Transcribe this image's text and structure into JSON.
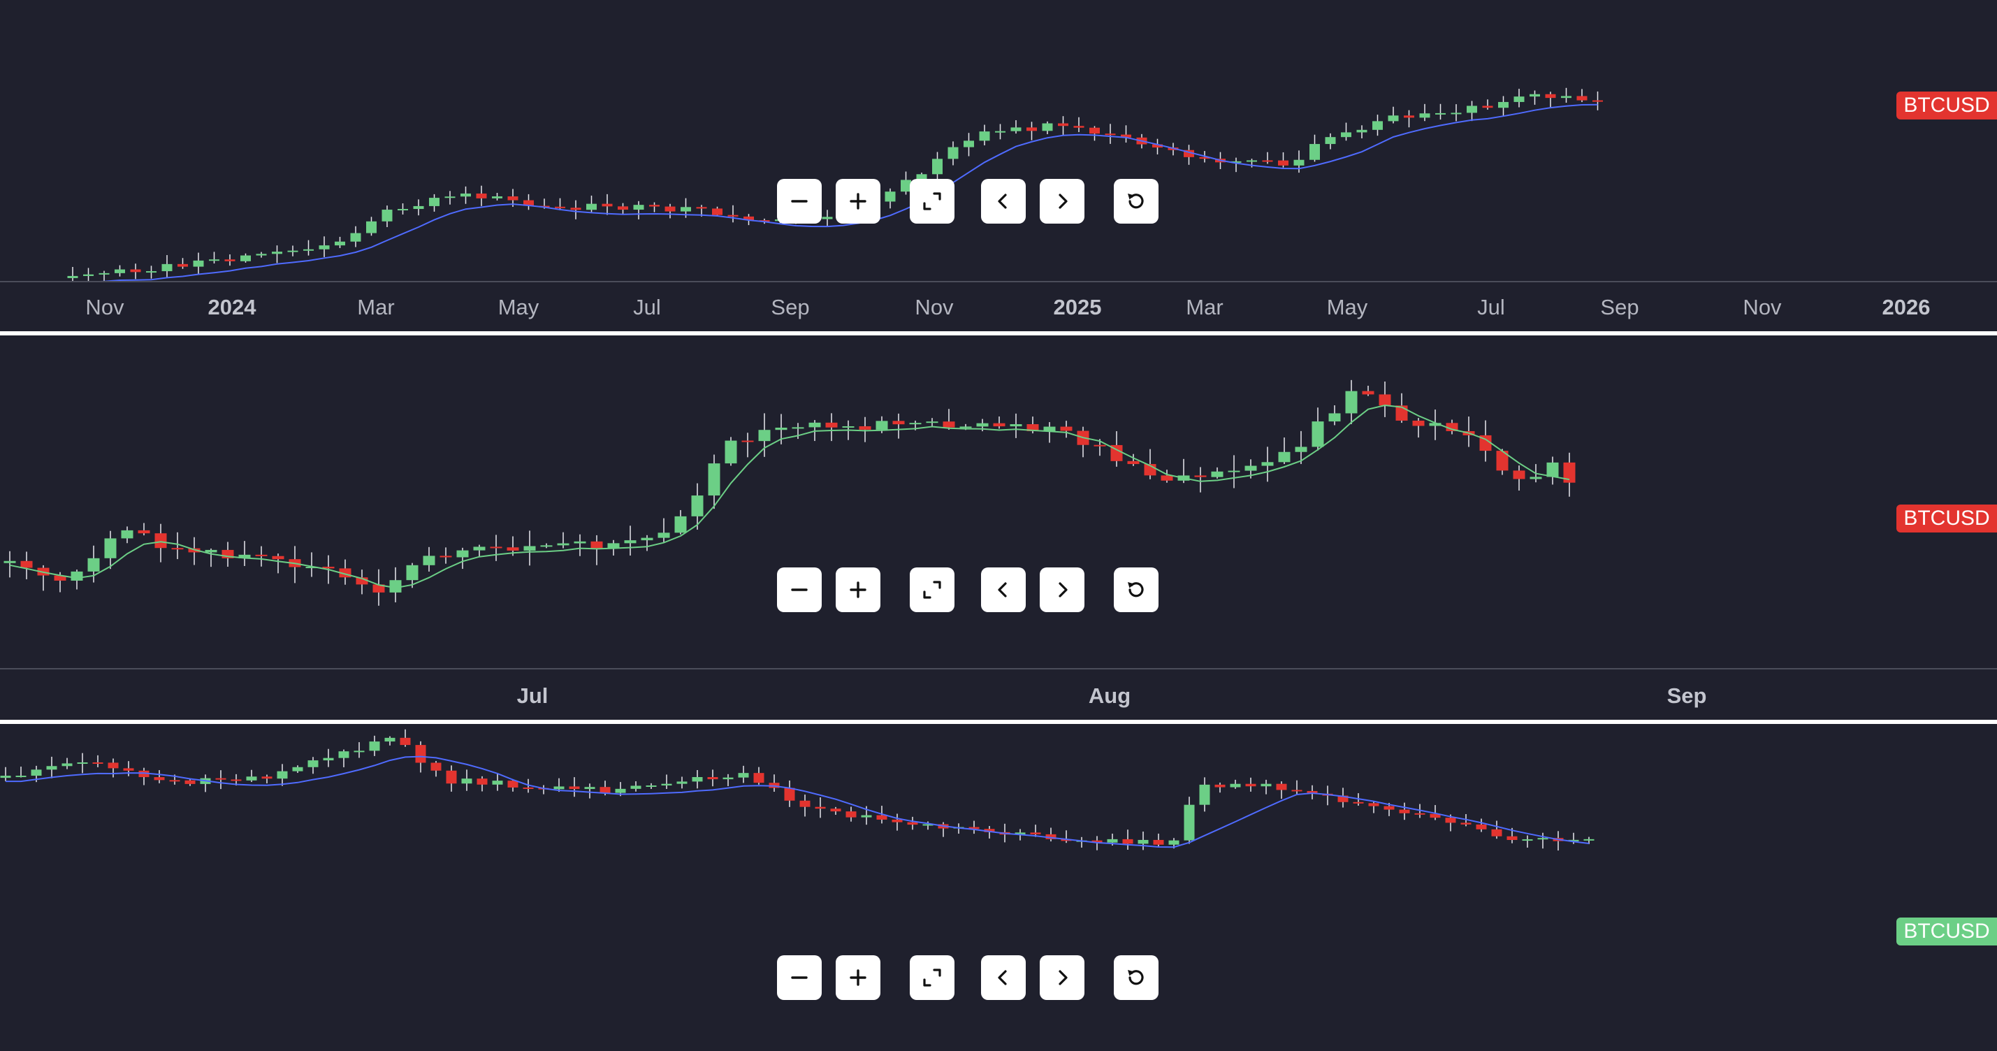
{
  "colors": {
    "background": "#1f202d",
    "up": "#6ccf86",
    "down": "#e3342f",
    "ma_blue": "#4f6bff",
    "ma_green": "#6ccf86",
    "axis_text": "#b4b6c0"
  },
  "panes": [
    {
      "id": "weekly",
      "price_label": "BTCUSD",
      "label_color": "#e3342f",
      "ma_color": "#4f6bff",
      "controls": [
        {
          "name": "zoom-out-button",
          "icon": "minus-icon"
        },
        {
          "name": "zoom-in-button",
          "icon": "plus-icon"
        },
        {
          "name": "fit-content-button",
          "icon": "fit-screen-icon"
        },
        {
          "name": "scroll-left-button",
          "icon": "chevron-left-icon"
        },
        {
          "name": "scroll-right-button",
          "icon": "chevron-right-icon"
        },
        {
          "name": "reset-button",
          "icon": "rotate-ccw-icon"
        }
      ],
      "time_axis": [
        {
          "label": "Nov",
          "bold": false
        },
        {
          "label": "2024",
          "bold": true
        },
        {
          "label": "Mar",
          "bold": false
        },
        {
          "label": "May",
          "bold": false
        },
        {
          "label": "Jul",
          "bold": false
        },
        {
          "label": "Sep",
          "bold": false
        },
        {
          "label": "Nov",
          "bold": false
        },
        {
          "label": "2025",
          "bold": true
        },
        {
          "label": "Mar",
          "bold": false
        },
        {
          "label": "May",
          "bold": false
        },
        {
          "label": "Jul",
          "bold": false
        },
        {
          "label": "Sep",
          "bold": false
        },
        {
          "label": "Nov",
          "bold": false
        },
        {
          "label": "2026",
          "bold": true
        }
      ]
    },
    {
      "id": "daily",
      "price_label": "BTCUSD",
      "label_color": "#e3342f",
      "ma_color": "#6ccf86",
      "controls": [
        {
          "name": "zoom-out-button",
          "icon": "minus-icon"
        },
        {
          "name": "zoom-in-button",
          "icon": "plus-icon"
        },
        {
          "name": "fit-content-button",
          "icon": "fit-screen-icon"
        },
        {
          "name": "scroll-left-button",
          "icon": "chevron-left-icon"
        },
        {
          "name": "scroll-right-button",
          "icon": "chevron-right-icon"
        },
        {
          "name": "reset-button",
          "icon": "rotate-ccw-icon"
        }
      ],
      "time_axis": [
        {
          "label": "Jul",
          "bold": true
        },
        {
          "label": "Aug",
          "bold": true
        },
        {
          "label": "Sep",
          "bold": true
        }
      ]
    },
    {
      "id": "intraday",
      "price_label": "BTCUSD",
      "label_color": "#6ccf86",
      "ma_color": "#4f6bff",
      "controls": [
        {
          "name": "zoom-out-button",
          "icon": "minus-icon"
        },
        {
          "name": "zoom-in-button",
          "icon": "plus-icon"
        },
        {
          "name": "fit-content-button",
          "icon": "fit-screen-icon"
        },
        {
          "name": "scroll-left-button",
          "icon": "chevron-left-icon"
        },
        {
          "name": "scroll-right-button",
          "icon": "chevron-right-icon"
        },
        {
          "name": "reset-button",
          "icon": "rotate-ccw-icon"
        }
      ],
      "time_axis": []
    }
  ]
}
